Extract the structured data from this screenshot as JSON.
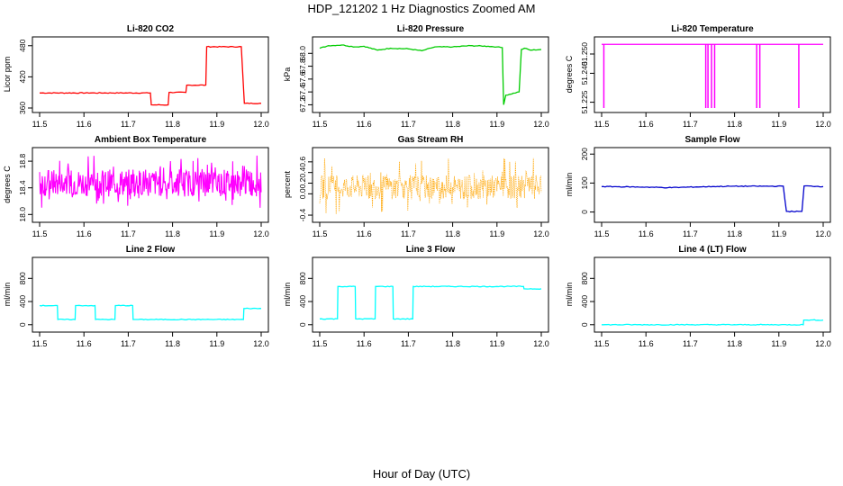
{
  "figure": {
    "title": "HDP_121202  1 Hz Diagnostics Zoomed AM",
    "xlabel": "Hour of Day (UTC)"
  },
  "chart_data": [
    {
      "type": "line",
      "title": "Li-820 CO2",
      "ylabel": "Licor ppm",
      "color": "#ff0000",
      "xlim": [
        11.5,
        12.0
      ],
      "ylim": [
        360,
        490
      ],
      "xticks": [
        "11.5",
        "11.6",
        "11.7",
        "11.8",
        "11.9",
        "12.0"
      ],
      "yticks": [
        {
          "value": 360,
          "label": "360"
        },
        {
          "value": 420,
          "label": "420"
        },
        {
          "value": 480,
          "label": "480"
        }
      ],
      "series": [
        {
          "x": [
            11.5,
            11.75,
            11.752,
            11.79,
            11.792,
            11.83,
            11.832,
            11.875,
            11.877,
            11.955,
            11.962,
            12.0
          ],
          "y": [
            389,
            389,
            366,
            366,
            390,
            390,
            404,
            404,
            478,
            478,
            369,
            369
          ]
        }
      ]
    },
    {
      "type": "line",
      "title": "Li-820 Pressure",
      "ylabel": "kPa",
      "color": "#00cc00",
      "xlim": [
        11.5,
        12.0
      ],
      "ylim": [
        67.15,
        68.2
      ],
      "xticks": [
        "11.5",
        "11.6",
        "11.7",
        "11.8",
        "11.9",
        "12.0"
      ],
      "yticks": [
        {
          "value": 67.2,
          "label": "67.2"
        },
        {
          "value": 67.4,
          "label": "67.4"
        },
        {
          "value": 67.6,
          "label": "67.6"
        },
        {
          "value": 67.8,
          "label": "67.8"
        },
        {
          "value": 68.0,
          "label": "68.0"
        }
      ],
      "series": [
        {
          "x": [
            11.5,
            11.52,
            11.55,
            11.58,
            11.6,
            11.63,
            11.66,
            11.7,
            11.73,
            11.76,
            11.8,
            11.84,
            11.88,
            11.9,
            11.912,
            11.915,
            11.92,
            11.95,
            11.955,
            11.962,
            11.975,
            12.0
          ],
          "y": [
            68.08,
            68.12,
            68.13,
            68.1,
            68.11,
            68.05,
            68.08,
            68.07,
            68.04,
            68.1,
            68.1,
            68.12,
            68.11,
            68.1,
            68.09,
            67.2,
            67.35,
            67.4,
            68.06,
            68.08,
            68.05,
            68.06
          ]
        }
      ]
    },
    {
      "type": "line",
      "title": "Li-820 Temperature",
      "ylabel": "degrees C",
      "color": "#ff00ff",
      "xlim": [
        11.5,
        12.0
      ],
      "ylim": [
        51.222,
        51.257
      ],
      "xticks": [
        "11.5",
        "11.6",
        "11.7",
        "11.8",
        "11.9",
        "12.0"
      ],
      "yticks": [
        {
          "value": 51.225,
          "label": "51.225"
        },
        {
          "value": 51.24,
          "label": "51.240"
        },
        {
          "value": 51.25,
          "label": "51.250"
        }
      ],
      "baseline": 51.255,
      "dips": [
        11.505,
        11.735,
        11.74,
        11.748,
        11.755,
        11.85,
        11.857,
        11.945
      ]
    },
    {
      "type": "line",
      "title": "Ambient Box Temperature",
      "ylabel": "degrees C",
      "color": "#ff00ff",
      "xlim": [
        11.5,
        12.0
      ],
      "ylim": [
        17.95,
        18.95
      ],
      "xticks": [
        "11.5",
        "11.6",
        "11.7",
        "11.8",
        "11.9",
        "12.0"
      ],
      "yticks": [
        {
          "value": 18.0,
          "label": "18.0"
        },
        {
          "value": 18.4,
          "label": "18.4"
        },
        {
          "value": 18.8,
          "label": "18.8"
        }
      ],
      "band": {
        "low": 18.27,
        "high": 18.68,
        "min": 18.05,
        "max": 18.9
      }
    },
    {
      "type": "scatter",
      "title": "Gas Stream RH",
      "ylabel": "percent",
      "color": "#ffa500",
      "xlim": [
        11.5,
        12.0
      ],
      "ylim": [
        -0.45,
        0.8
      ],
      "xticks": [
        "11.5",
        "11.6",
        "11.7",
        "11.8",
        "11.9",
        "12.0"
      ],
      "yticks": [
        {
          "value": -0.4,
          "label": "-0.4"
        },
        {
          "value": 0.0,
          "label": "0.0"
        },
        {
          "value": 0.2,
          "label": "0.2"
        },
        {
          "value": 0.4,
          "label": "0.4"
        },
        {
          "value": 0.6,
          "label": "0.6"
        }
      ],
      "band": {
        "low": -0.1,
        "high": 0.35,
        "min": -0.4,
        "max": 0.7
      }
    },
    {
      "type": "line",
      "title": "Sample Flow",
      "ylabel": "ml/min",
      "color": "#0000cc",
      "xlim": [
        11.5,
        12.0
      ],
      "ylim": [
        -20,
        210
      ],
      "xticks": [
        "11.5",
        "11.6",
        "11.7",
        "11.8",
        "11.9",
        "12.0"
      ],
      "yticks": [
        {
          "value": 0,
          "label": "0"
        },
        {
          "value": 100,
          "label": "100"
        },
        {
          "value": 200,
          "label": "200"
        }
      ],
      "series": [
        {
          "x": [
            11.5,
            11.6,
            11.65,
            11.75,
            11.8,
            11.91,
            11.917,
            11.952,
            11.957,
            12.0
          ],
          "y": [
            88,
            86,
            84,
            88,
            89,
            89,
            2,
            2,
            90,
            88
          ]
        }
      ]
    },
    {
      "type": "line",
      "title": "Line 2 Flow",
      "ylabel": "ml/min",
      "color": "#00ffff",
      "xlim": [
        11.5,
        12.0
      ],
      "ylim": [
        -50,
        1100
      ],
      "xticks": [
        "11.5",
        "11.6",
        "11.7",
        "11.8",
        "11.9",
        "12.0"
      ],
      "yticks": [
        {
          "value": 0,
          "label": "0"
        },
        {
          "value": 400,
          "label": "400"
        },
        {
          "value": 800,
          "label": "800"
        }
      ],
      "series": [
        {
          "x": [
            11.5,
            11.54,
            11.541,
            11.58,
            11.581,
            11.625,
            11.626,
            11.67,
            11.671,
            11.71,
            11.711,
            11.96,
            11.961,
            12.0
          ],
          "y": [
            330,
            330,
            90,
            90,
            330,
            330,
            90,
            90,
            330,
            330,
            90,
            90,
            280,
            280
          ]
        }
      ]
    },
    {
      "type": "line",
      "title": "Line 3 Flow",
      "ylabel": "ml/min",
      "color": "#00ffff",
      "xlim": [
        11.5,
        12.0
      ],
      "ylim": [
        -50,
        1100
      ],
      "xticks": [
        "11.5",
        "11.6",
        "11.7",
        "11.8",
        "11.9",
        "12.0"
      ],
      "yticks": [
        {
          "value": 0,
          "label": "0"
        },
        {
          "value": 400,
          "label": "400"
        },
        {
          "value": 800,
          "label": "800"
        }
      ],
      "series": [
        {
          "x": [
            11.5,
            11.54,
            11.541,
            11.58,
            11.581,
            11.625,
            11.626,
            11.665,
            11.666,
            11.71,
            11.711,
            11.96,
            11.961,
            12.0
          ],
          "y": [
            100,
            100,
            660,
            660,
            100,
            100,
            660,
            660,
            100,
            100,
            660,
            660,
            620,
            620
          ]
        }
      ]
    },
    {
      "type": "line",
      "title": "Line 4 (LT) Flow",
      "ylabel": "ml/min",
      "color": "#00ffff",
      "xlim": [
        11.5,
        12.0
      ],
      "ylim": [
        -50,
        1100
      ],
      "xticks": [
        "11.5",
        "11.6",
        "11.7",
        "11.8",
        "11.9",
        "12.0"
      ],
      "yticks": [
        {
          "value": 0,
          "label": "0"
        },
        {
          "value": 400,
          "label": "400"
        },
        {
          "value": 800,
          "label": "800"
        }
      ],
      "series": [
        {
          "x": [
            11.5,
            11.955,
            11.956,
            12.0
          ],
          "y": [
            0,
            0,
            80,
            80
          ]
        }
      ]
    }
  ]
}
